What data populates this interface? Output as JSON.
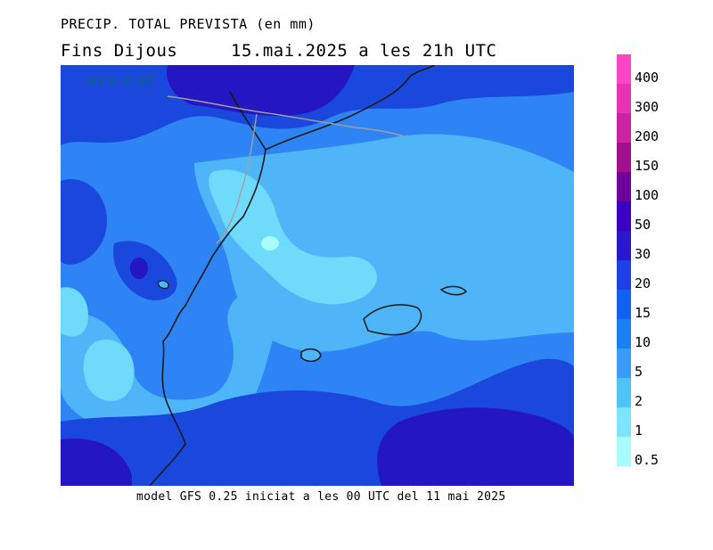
{
  "header": {
    "title": "PRECIP. TOTAL PREVISTA (en mm)",
    "subtitle": "Fins Dijous     15.mai.2025 a les 21h UTC"
  },
  "map": {
    "watermark": "ara.cat"
  },
  "footer": {
    "caption": "model GFS 0.25 iniciat a les 00 UTC del 11 mai 2025"
  },
  "legend": {
    "labels": [
      "400",
      "300",
      "200",
      "150",
      "100",
      "50",
      "30",
      "20",
      "15",
      "10",
      "5",
      "2",
      "1",
      "0.5"
    ],
    "colors": [
      "#ff44c8",
      "#e832b4",
      "#cc24a0",
      "#a0108c",
      "#70009c",
      "#3c00c0",
      "#2a18cc",
      "#1e40e6",
      "#1460f0",
      "#1a80f4",
      "#3a9cf8",
      "#50c4f8",
      "#7ee6fc",
      "#a8fcfc"
    ]
  },
  "palette": {
    "bg_mid": "#2e84f4",
    "light": "#4eb6f8",
    "lighter": "#6edafc",
    "dark": "#1a48dc",
    "darker": "#2416c2",
    "coast": "#1a1a1a",
    "border": "#a0a0a0"
  }
}
